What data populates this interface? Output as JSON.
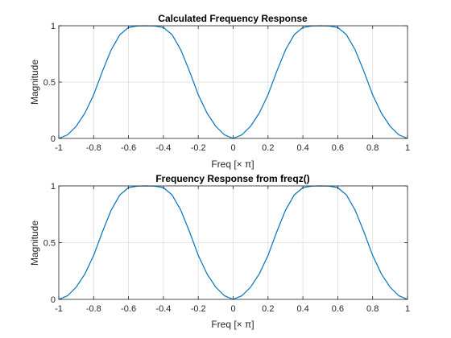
{
  "chart_data": [
    {
      "type": "line",
      "title": "Calculated Frequency Response",
      "xlabel": "Freq [× π]",
      "ylabel": "Magnitude",
      "xlim": [
        -1,
        1
      ],
      "ylim": [
        0,
        1
      ],
      "xticks": [
        -1,
        -0.8,
        -0.6,
        -0.4,
        -0.2,
        0,
        0.2,
        0.4,
        0.6,
        0.8,
        1
      ],
      "xtick_labels": [
        "-1",
        "-0.8",
        "-0.6",
        "-0.4",
        "-0.2",
        "0",
        "0.2",
        "0.4",
        "0.6",
        "0.8",
        "1"
      ],
      "yticks": [
        0,
        0.5,
        1
      ],
      "ytick_labels": [
        "0",
        "0.5",
        "1"
      ],
      "grid": true,
      "series": [
        {
          "name": "magnitude",
          "color": "#0072BD",
          "x": [
            -1,
            -0.95,
            -0.9,
            -0.85,
            -0.8,
            -0.75,
            -0.7,
            -0.65,
            -0.6,
            -0.55,
            -0.5,
            -0.45,
            -0.4,
            -0.35,
            -0.3,
            -0.25,
            -0.2,
            -0.15,
            -0.1,
            -0.05,
            0,
            0.05,
            0.1,
            0.15,
            0.2,
            0.25,
            0.3,
            0.35,
            0.4,
            0.45,
            0.5,
            0.55,
            0.6,
            0.65,
            0.7,
            0.75,
            0.8,
            0.85,
            0.9,
            0.95,
            1
          ],
          "y": [
            0,
            0.032,
            0.108,
            0.225,
            0.387,
            0.595,
            0.785,
            0.92,
            0.985,
            0.998,
            1,
            0.998,
            0.985,
            0.92,
            0.785,
            0.595,
            0.387,
            0.225,
            0.108,
            0.032,
            0,
            0.032,
            0.108,
            0.225,
            0.387,
            0.595,
            0.785,
            0.92,
            0.985,
            0.998,
            1,
            0.998,
            0.985,
            0.92,
            0.785,
            0.595,
            0.387,
            0.225,
            0.108,
            0.032,
            0
          ]
        }
      ]
    },
    {
      "type": "line",
      "title": "Frequency Response from freqz()",
      "xlabel": "Freq [× π]",
      "ylabel": "Magnitude",
      "xlim": [
        -1,
        1
      ],
      "ylim": [
        0,
        1
      ],
      "xticks": [
        -1,
        -0.8,
        -0.6,
        -0.4,
        -0.2,
        0,
        0.2,
        0.4,
        0.6,
        0.8,
        1
      ],
      "xtick_labels": [
        "-1",
        "-0.8",
        "-0.6",
        "-0.4",
        "-0.2",
        "0",
        "0.2",
        "0.4",
        "0.6",
        "0.8",
        "1"
      ],
      "yticks": [
        0,
        0.5,
        1
      ],
      "ytick_labels": [
        "0",
        "0.5",
        "1"
      ],
      "grid": true,
      "series": [
        {
          "name": "magnitude",
          "color": "#0072BD",
          "x": [
            -1,
            -0.95,
            -0.9,
            -0.85,
            -0.8,
            -0.75,
            -0.7,
            -0.65,
            -0.6,
            -0.55,
            -0.5,
            -0.45,
            -0.4,
            -0.35,
            -0.3,
            -0.25,
            -0.2,
            -0.15,
            -0.1,
            -0.05,
            0,
            0.05,
            0.1,
            0.15,
            0.2,
            0.25,
            0.3,
            0.35,
            0.4,
            0.45,
            0.5,
            0.55,
            0.6,
            0.65,
            0.7,
            0.75,
            0.8,
            0.85,
            0.9,
            0.95,
            1
          ],
          "y": [
            0,
            0.032,
            0.108,
            0.225,
            0.387,
            0.595,
            0.785,
            0.92,
            0.985,
            0.998,
            1,
            0.998,
            0.985,
            0.92,
            0.785,
            0.595,
            0.387,
            0.225,
            0.108,
            0.032,
            0,
            0.032,
            0.108,
            0.225,
            0.387,
            0.595,
            0.785,
            0.92,
            0.985,
            0.998,
            1,
            0.998,
            0.985,
            0.92,
            0.785,
            0.595,
            0.387,
            0.225,
            0.108,
            0.032,
            0
          ]
        }
      ]
    }
  ]
}
